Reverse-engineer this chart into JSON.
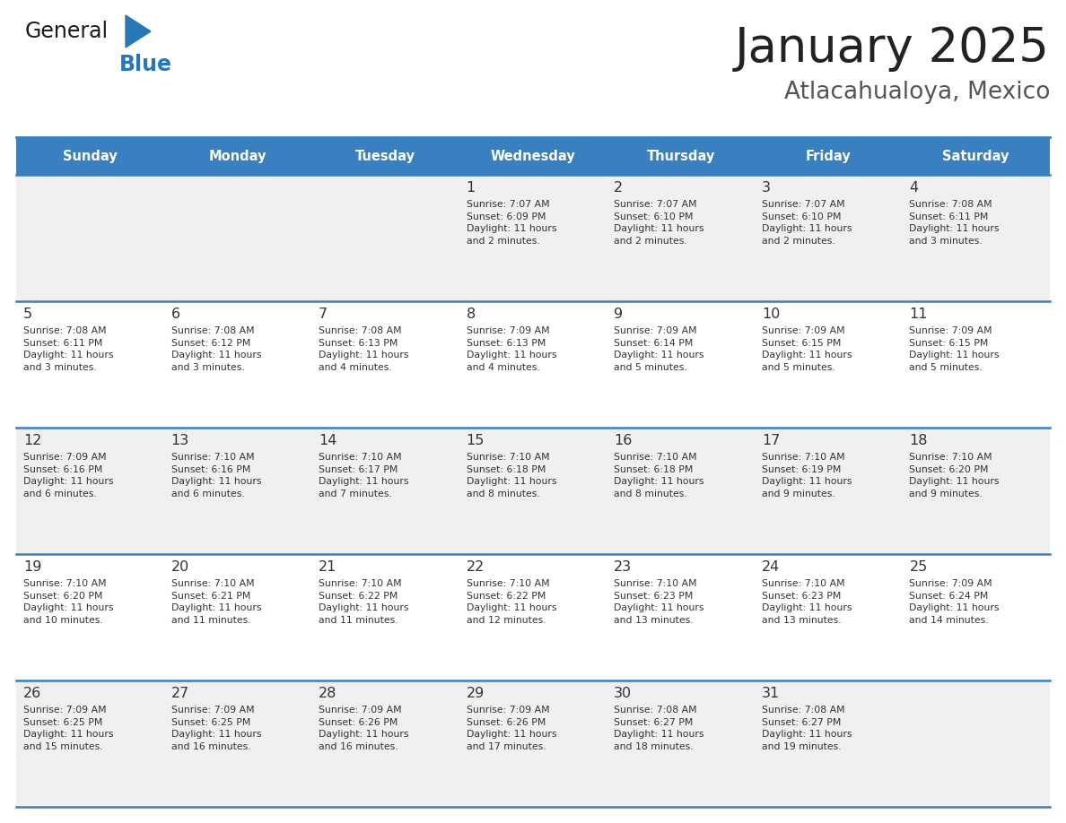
{
  "title": "January 2025",
  "subtitle": "Atlacahualoya, Mexico",
  "days_of_week": [
    "Sunday",
    "Monday",
    "Tuesday",
    "Wednesday",
    "Thursday",
    "Friday",
    "Saturday"
  ],
  "header_bg": "#3a7fbf",
  "header_text_color": "#ffffff",
  "cell_bg_even": "#f0f0f0",
  "cell_bg_odd": "#ffffff",
  "cell_text_color": "#333333",
  "day_num_color": "#333333",
  "grid_line_color": "#3a7fbf",
  "title_color": "#222222",
  "subtitle_color": "#555555",
  "logo_general_color": "#1a1a1a",
  "logo_blue_color": "#2878b8",
  "weeks": [
    [
      {
        "day": 0,
        "info": ""
      },
      {
        "day": 0,
        "info": ""
      },
      {
        "day": 0,
        "info": ""
      },
      {
        "day": 1,
        "info": "Sunrise: 7:07 AM\nSunset: 6:09 PM\nDaylight: 11 hours\nand 2 minutes."
      },
      {
        "day": 2,
        "info": "Sunrise: 7:07 AM\nSunset: 6:10 PM\nDaylight: 11 hours\nand 2 minutes."
      },
      {
        "day": 3,
        "info": "Sunrise: 7:07 AM\nSunset: 6:10 PM\nDaylight: 11 hours\nand 2 minutes."
      },
      {
        "day": 4,
        "info": "Sunrise: 7:08 AM\nSunset: 6:11 PM\nDaylight: 11 hours\nand 3 minutes."
      }
    ],
    [
      {
        "day": 5,
        "info": "Sunrise: 7:08 AM\nSunset: 6:11 PM\nDaylight: 11 hours\nand 3 minutes."
      },
      {
        "day": 6,
        "info": "Sunrise: 7:08 AM\nSunset: 6:12 PM\nDaylight: 11 hours\nand 3 minutes."
      },
      {
        "day": 7,
        "info": "Sunrise: 7:08 AM\nSunset: 6:13 PM\nDaylight: 11 hours\nand 4 minutes."
      },
      {
        "day": 8,
        "info": "Sunrise: 7:09 AM\nSunset: 6:13 PM\nDaylight: 11 hours\nand 4 minutes."
      },
      {
        "day": 9,
        "info": "Sunrise: 7:09 AM\nSunset: 6:14 PM\nDaylight: 11 hours\nand 5 minutes."
      },
      {
        "day": 10,
        "info": "Sunrise: 7:09 AM\nSunset: 6:15 PM\nDaylight: 11 hours\nand 5 minutes."
      },
      {
        "day": 11,
        "info": "Sunrise: 7:09 AM\nSunset: 6:15 PM\nDaylight: 11 hours\nand 5 minutes."
      }
    ],
    [
      {
        "day": 12,
        "info": "Sunrise: 7:09 AM\nSunset: 6:16 PM\nDaylight: 11 hours\nand 6 minutes."
      },
      {
        "day": 13,
        "info": "Sunrise: 7:10 AM\nSunset: 6:16 PM\nDaylight: 11 hours\nand 6 minutes."
      },
      {
        "day": 14,
        "info": "Sunrise: 7:10 AM\nSunset: 6:17 PM\nDaylight: 11 hours\nand 7 minutes."
      },
      {
        "day": 15,
        "info": "Sunrise: 7:10 AM\nSunset: 6:18 PM\nDaylight: 11 hours\nand 8 minutes."
      },
      {
        "day": 16,
        "info": "Sunrise: 7:10 AM\nSunset: 6:18 PM\nDaylight: 11 hours\nand 8 minutes."
      },
      {
        "day": 17,
        "info": "Sunrise: 7:10 AM\nSunset: 6:19 PM\nDaylight: 11 hours\nand 9 minutes."
      },
      {
        "day": 18,
        "info": "Sunrise: 7:10 AM\nSunset: 6:20 PM\nDaylight: 11 hours\nand 9 minutes."
      }
    ],
    [
      {
        "day": 19,
        "info": "Sunrise: 7:10 AM\nSunset: 6:20 PM\nDaylight: 11 hours\nand 10 minutes."
      },
      {
        "day": 20,
        "info": "Sunrise: 7:10 AM\nSunset: 6:21 PM\nDaylight: 11 hours\nand 11 minutes."
      },
      {
        "day": 21,
        "info": "Sunrise: 7:10 AM\nSunset: 6:22 PM\nDaylight: 11 hours\nand 11 minutes."
      },
      {
        "day": 22,
        "info": "Sunrise: 7:10 AM\nSunset: 6:22 PM\nDaylight: 11 hours\nand 12 minutes."
      },
      {
        "day": 23,
        "info": "Sunrise: 7:10 AM\nSunset: 6:23 PM\nDaylight: 11 hours\nand 13 minutes."
      },
      {
        "day": 24,
        "info": "Sunrise: 7:10 AM\nSunset: 6:23 PM\nDaylight: 11 hours\nand 13 minutes."
      },
      {
        "day": 25,
        "info": "Sunrise: 7:09 AM\nSunset: 6:24 PM\nDaylight: 11 hours\nand 14 minutes."
      }
    ],
    [
      {
        "day": 26,
        "info": "Sunrise: 7:09 AM\nSunset: 6:25 PM\nDaylight: 11 hours\nand 15 minutes."
      },
      {
        "day": 27,
        "info": "Sunrise: 7:09 AM\nSunset: 6:25 PM\nDaylight: 11 hours\nand 16 minutes."
      },
      {
        "day": 28,
        "info": "Sunrise: 7:09 AM\nSunset: 6:26 PM\nDaylight: 11 hours\nand 16 minutes."
      },
      {
        "day": 29,
        "info": "Sunrise: 7:09 AM\nSunset: 6:26 PM\nDaylight: 11 hours\nand 17 minutes."
      },
      {
        "day": 30,
        "info": "Sunrise: 7:08 AM\nSunset: 6:27 PM\nDaylight: 11 hours\nand 18 minutes."
      },
      {
        "day": 31,
        "info": "Sunrise: 7:08 AM\nSunset: 6:27 PM\nDaylight: 11 hours\nand 19 minutes."
      },
      {
        "day": 0,
        "info": ""
      }
    ]
  ]
}
